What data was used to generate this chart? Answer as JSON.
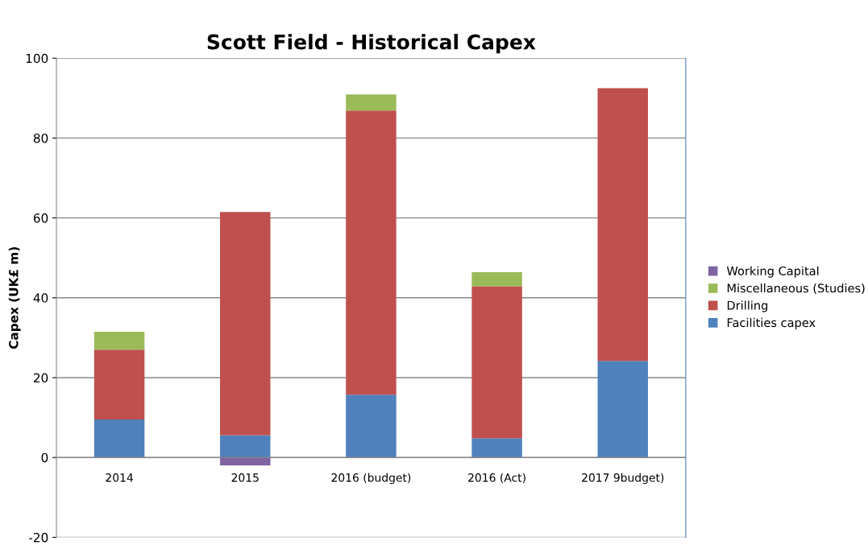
{
  "chart_data": {
    "type": "bar",
    "title": "Scott Field - Historical Capex",
    "ylabel": "Capex (UK£ m)",
    "categories": [
      "2014",
      "2015",
      "2016 (budget)",
      "2016 (Act)",
      "2017 9budget)"
    ],
    "stacked": true,
    "series": [
      {
        "name": "Facilities capex",
        "color": "#4f81bd",
        "values": [
          9.5,
          5.6,
          15.7,
          4.8,
          24.2
        ]
      },
      {
        "name": "Drilling",
        "color": "#c0504d",
        "values": [
          17.5,
          55.9,
          71.2,
          38.1,
          68.3
        ]
      },
      {
        "name": "Miscellaneous (Studies)",
        "color": "#9bbb59",
        "values": [
          4.5,
          null,
          4.0,
          3.5,
          null
        ]
      },
      {
        "name": "Working Capital",
        "color": "#8064a2",
        "values": [
          null,
          -2.0,
          null,
          null,
          null
        ]
      }
    ],
    "ylim": [
      -20,
      100
    ],
    "yticks": [
      -20,
      0,
      20,
      40,
      60,
      80,
      100
    ],
    "grid": "y",
    "legend": "right"
  }
}
